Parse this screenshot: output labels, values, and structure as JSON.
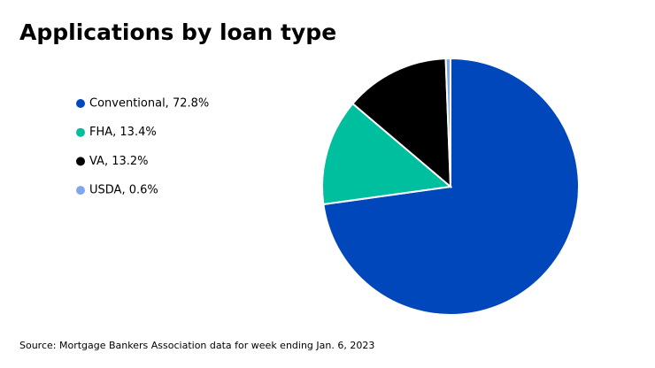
{
  "chart_data": {
    "type": "pie",
    "title": "Applications by loan type",
    "categories": [
      "Conventional, 72.8%",
      "FHA, 13.4%",
      "VA, 13.2%",
      "USDA, 0.6%"
    ],
    "values": [
      72.8,
      13.4,
      13.2,
      0.6
    ],
    "colors": [
      "#0047bb",
      "#00bf9e",
      "#000000",
      "#7fa6ee"
    ],
    "source": "Source: Mortgage Bankers Association data for week ending Jan. 6, 2023"
  }
}
